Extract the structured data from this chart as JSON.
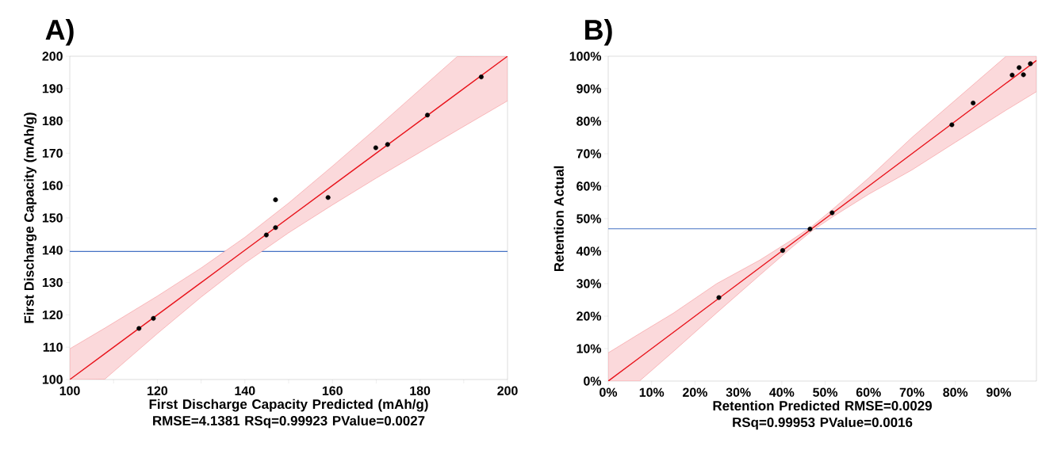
{
  "chart_data": [
    {
      "type": "scatter",
      "title": "A)",
      "xlabel": "First Discharge Capacity Predicted (mAh/g)",
      "ylabel": "First Discharge Capacity (mAh/g)",
      "annotations": [
        "RMSE=4.1381 RSq=0.99923 PValue=0.0027"
      ],
      "xlim": [
        100,
        200
      ],
      "ylim": [
        100,
        200
      ],
      "xticks": [
        100,
        {
          "value": 110,
          "label": null
        },
        120,
        {
          "value": 130,
          "label": null
        },
        140,
        {
          "value": 150,
          "label": null
        },
        160,
        {
          "value": 170,
          "label": null
        },
        180,
        {
          "value": 190,
          "label": null
        },
        200
      ],
      "yticks": [
        100,
        110,
        120,
        130,
        140,
        150,
        160,
        170,
        180,
        190,
        200
      ],
      "ref_lines": [
        {
          "axis": "y",
          "value": 139.6,
          "color": "#4472c4"
        }
      ],
      "series": [
        {
          "type": "line",
          "color": "#e8131b",
          "x": [
            100,
            108,
            120,
            130,
            140,
            150,
            160,
            170,
            180,
            188.5,
            200
          ],
          "values": [
            100,
            108,
            120,
            130,
            140,
            150,
            160,
            170,
            180,
            188.5,
            200
          ],
          "upper": [
            109.5,
            115.9,
            125.8,
            134.5,
            144,
            154.6,
            166,
            177.7,
            189.7,
            199.9,
            200
          ],
          "lower": [
            100,
            100.1,
            114.2,
            125.5,
            136,
            145.4,
            154,
            162.3,
            170.3,
            177.1,
            186.2
          ]
        },
        {
          "color": "#000000",
          "marker": "circle",
          "x": [
            115.8,
            119.1,
            144.9,
            147.0,
            147.0,
            159.0,
            169.9,
            172.6,
            181.7,
            194.0
          ],
          "values": [
            115.8,
            118.9,
            144.7,
            147.0,
            155.6,
            156.3,
            171.7,
            172.7,
            181.8,
            193.6
          ]
        }
      ]
    },
    {
      "type": "scatter",
      "title": "B)",
      "xlabel": "Retention Predicted",
      "ylabel": "Retention Actual",
      "annotations": [
        "RMSE=0.0029 RSq=0.99953 PValue=0.0016"
      ],
      "xlim": [
        0,
        98.7
      ],
      "ylim": [
        0,
        100
      ],
      "xticks": [
        {
          "value": 0,
          "label": "0%"
        },
        {
          "value": 10,
          "label": "10%"
        },
        {
          "value": 20,
          "label": "20%"
        },
        {
          "value": 30,
          "label": "30%"
        },
        {
          "value": 40,
          "label": "40%"
        },
        {
          "value": 50,
          "label": "50%"
        },
        {
          "value": 60,
          "label": "60%"
        },
        {
          "value": 70,
          "label": "70%"
        },
        {
          "value": 80,
          "label": "80%"
        },
        {
          "value": 90,
          "label": "90%"
        }
      ],
      "yticks": [
        {
          "value": 0,
          "label": "0%"
        },
        {
          "value": 10,
          "label": "10%"
        },
        {
          "value": 20,
          "label": "20%"
        },
        {
          "value": 30,
          "label": "30%"
        },
        {
          "value": 40,
          "label": "40%"
        },
        {
          "value": 50,
          "label": "50%"
        },
        {
          "value": 60,
          "label": "60%"
        },
        {
          "value": 70,
          "label": "70%"
        },
        {
          "value": 80,
          "label": "80%"
        },
        {
          "value": 90,
          "label": "90%"
        },
        {
          "value": 100,
          "label": "100%"
        }
      ],
      "ref_lines": [
        {
          "axis": "y",
          "value": 46.9,
          "color": "#4472c4"
        }
      ],
      "series": [
        {
          "type": "line",
          "color": "#e8131b",
          "x": [
            0,
            7.2,
            15,
            25,
            35,
            42,
            47,
            52,
            60,
            70,
            80,
            91.7,
            98.7
          ],
          "values": [
            0,
            7.2,
            15,
            25,
            35,
            42,
            47,
            52,
            60,
            70,
            80,
            91.7,
            98.7
          ],
          "upper": [
            8.7,
            14.6,
            20.9,
            30.0,
            37.3,
            43.2,
            47.7,
            53.2,
            62.5,
            75.0,
            86.5,
            100.0,
            100
          ],
          "lower": [
            0,
            0,
            9.1,
            21.0,
            32.7,
            40.8,
            46.3,
            50.8,
            57.5,
            65.0,
            73.5,
            83.4,
            89.1
          ]
        },
        {
          "color": "#000000",
          "marker": "circle",
          "x": [
            25.5,
            40.2,
            46.5,
            51.6,
            79.2,
            84.1,
            93.1,
            94.7,
            95.7,
            97.3
          ],
          "values": [
            25.7,
            40.2,
            46.8,
            51.8,
            78.9,
            85.6,
            94.2,
            96.5,
            94.3,
            97.7
          ]
        }
      ]
    }
  ]
}
